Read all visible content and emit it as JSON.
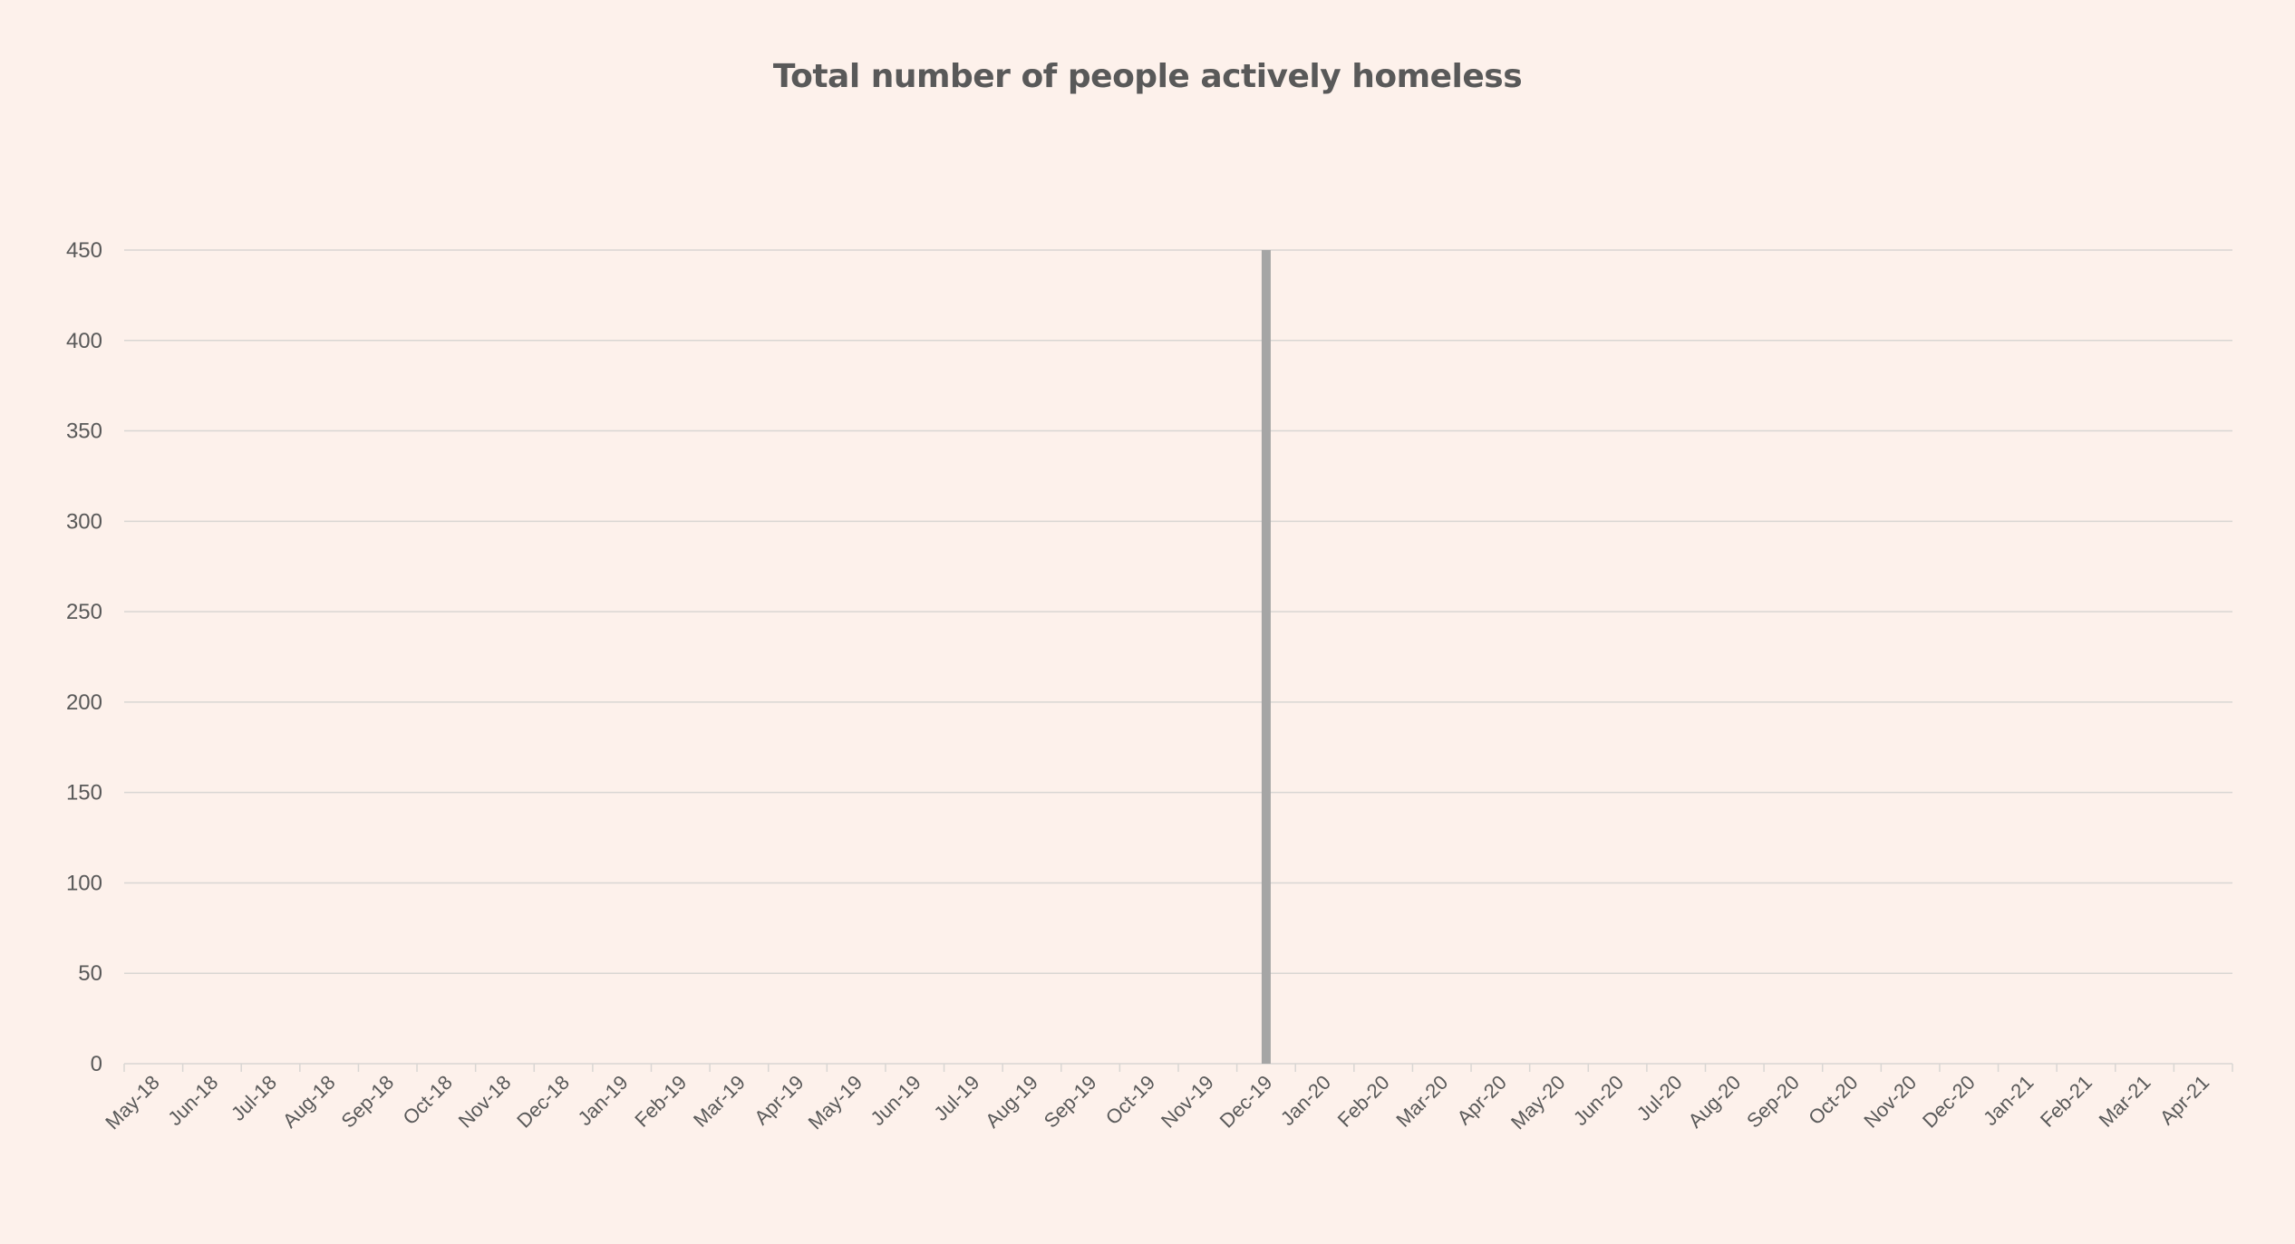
{
  "chart_data": {
    "type": "bar",
    "title": "Total number of people actively homeless",
    "xlabel": "",
    "ylabel": "",
    "ylim": [
      0,
      450
    ],
    "yticks": [
      0,
      50,
      100,
      150,
      200,
      250,
      300,
      350,
      400,
      450
    ],
    "grid": true,
    "legend": "none",
    "categories": [
      "May-18",
      "Jun-18",
      "Jul-18",
      "Aug-18",
      "Sep-18",
      "Oct-18",
      "Nov-18",
      "Dec-18",
      "Jan-19",
      "Feb-19",
      "Mar-19",
      "Apr-19",
      "May-19",
      "Jun-19",
      "Jul-19",
      "Aug-19",
      "Sep-19",
      "Oct-19",
      "Nov-19",
      "Dec-19",
      "Jan-20",
      "Feb-20",
      "Mar-20",
      "Apr-20",
      "May-20",
      "Jun-20",
      "Jul-20",
      "Aug-20",
      "Sep-20",
      "Oct-20",
      "Nov-20",
      "Dec-20",
      "Jan-21",
      "Feb-21",
      "Mar-21",
      "Apr-21"
    ],
    "values": [
      null,
      null,
      null,
      null,
      null,
      null,
      null,
      null,
      null,
      null,
      null,
      null,
      null,
      null,
      null,
      null,
      null,
      null,
      null,
      450,
      null,
      null,
      null,
      null,
      null,
      null,
      null,
      null,
      null,
      null,
      null,
      null,
      null,
      null,
      null,
      null
    ],
    "bar_color": "#a5a5a5",
    "grid_color": "#d9d6d3",
    "text_color": "#595959",
    "background_color": "#fdf1eb"
  }
}
